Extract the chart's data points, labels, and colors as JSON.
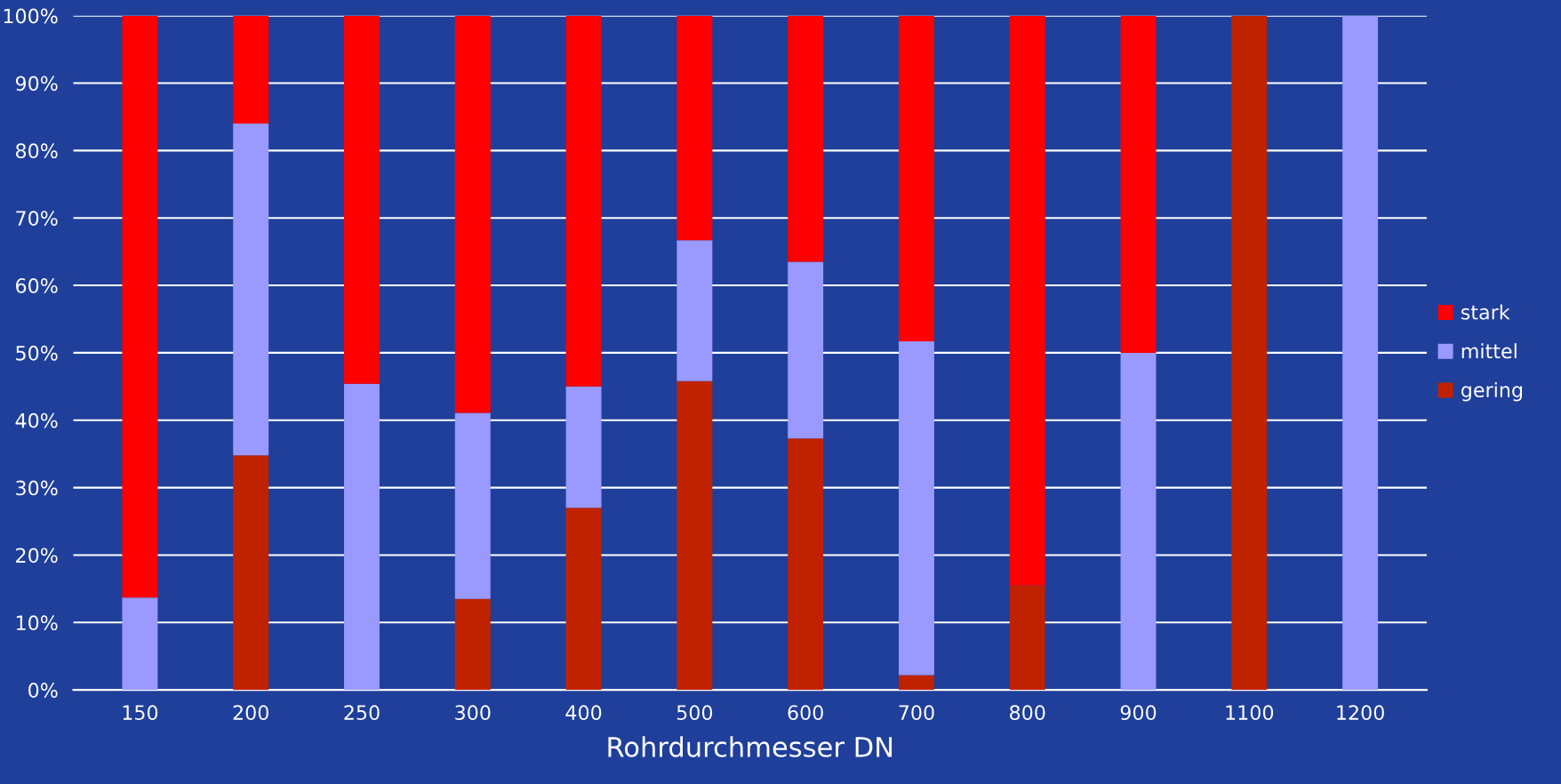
{
  "chart_data": {
    "type": "bar",
    "stacked": true,
    "xlabel": "Rohrdurchmesser DN",
    "categories": [
      "150",
      "200",
      "250",
      "300",
      "400",
      "500",
      "600",
      "700",
      "800",
      "900",
      "1100",
      "1200"
    ],
    "series": [
      {
        "name": "gering",
        "color": "#c02200",
        "values": [
          0,
          34.8,
          0,
          13.5,
          27,
          45.8,
          37.3,
          2.2,
          15.5,
          0,
          100,
          0
        ]
      },
      {
        "name": "mittel",
        "color": "#9999ff",
        "values": [
          13.7,
          49.2,
          45.4,
          27.6,
          18,
          20.9,
          26.2,
          49.5,
          0,
          50,
          0,
          100
        ]
      },
      {
        "name": "stark",
        "color": "#ff0000",
        "values": [
          86.3,
          16,
          54.6,
          58.9,
          55,
          33.3,
          36.5,
          48.3,
          84.5,
          50,
          0,
          0
        ]
      }
    ],
    "ylim": [
      0,
      100
    ],
    "yticks": [
      {
        "value": 0,
        "label": "0%"
      },
      {
        "value": 10,
        "label": "10%"
      },
      {
        "value": 20,
        "label": "20%"
      },
      {
        "value": 30,
        "label": "30%"
      },
      {
        "value": 40,
        "label": "40%"
      },
      {
        "value": 50,
        "label": "50%"
      },
      {
        "value": 60,
        "label": "60%"
      },
      {
        "value": 70,
        "label": "70%"
      },
      {
        "value": 80,
        "label": "80%"
      },
      {
        "value": 90,
        "label": "90%"
      },
      {
        "value": 100,
        "label": "100%"
      }
    ],
    "grid": "y",
    "legend": "right"
  }
}
